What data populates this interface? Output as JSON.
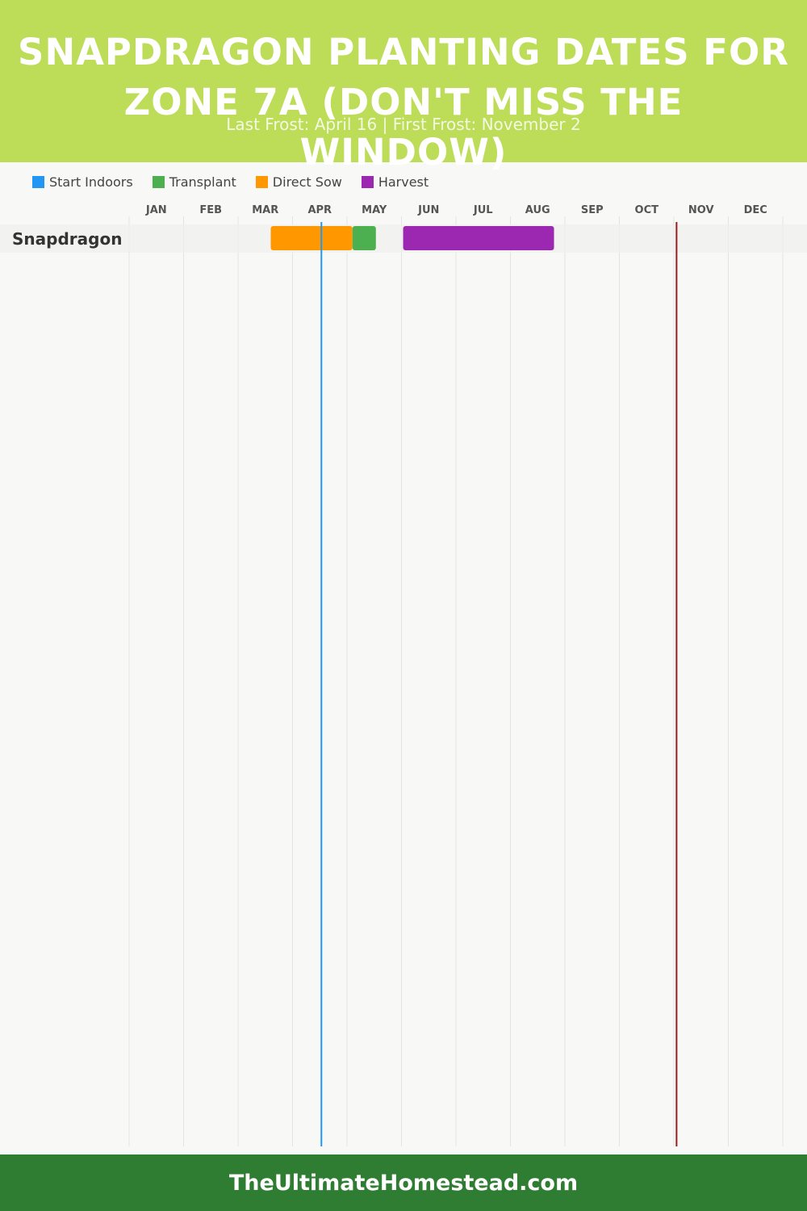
{
  "header": {
    "title": "Snapdragon Planting Dates for Zone 7A (Don't Miss the Window)",
    "subtitle": "Last Frost: April 16 | First Frost: November 2"
  },
  "legend": [
    {
      "label": "Start Indoors",
      "color": "#2196f3"
    },
    {
      "label": "Transplant",
      "color": "#4caf50"
    },
    {
      "label": "Direct Sow",
      "color": "#ff9800"
    },
    {
      "label": "Harvest",
      "color": "#9c27b0"
    }
  ],
  "chart_data": {
    "type": "gantt",
    "months": [
      "JAN",
      "FEB",
      "MAR",
      "APR",
      "MAY",
      "JUN",
      "JUL",
      "AUG",
      "SEP",
      "OCT",
      "NOV",
      "DEC"
    ],
    "rows": [
      {
        "name": "Snapdragon",
        "tasks": [
          {
            "type": "Direct Sow",
            "start": "Mar 19",
            "end": "May 4",
            "start_month": 2.6,
            "end_month": 4.1
          },
          {
            "type": "Transplant",
            "start": "May 4",
            "end": "May 17",
            "start_month": 4.1,
            "end_month": 4.53
          },
          {
            "type": "Harvest",
            "start": "Jun 2",
            "end": "Aug 27",
            "start_month": 5.03,
            "end_month": 7.8
          }
        ]
      }
    ],
    "last_frost": {
      "label": "April 16",
      "month": 3.53,
      "color": "#2196f3"
    },
    "first_frost": {
      "label": "November 2",
      "month": 10.05,
      "color": "#9a1c1c"
    },
    "grid": true
  },
  "footer": {
    "text": "TheUltimateHomestead.com"
  }
}
